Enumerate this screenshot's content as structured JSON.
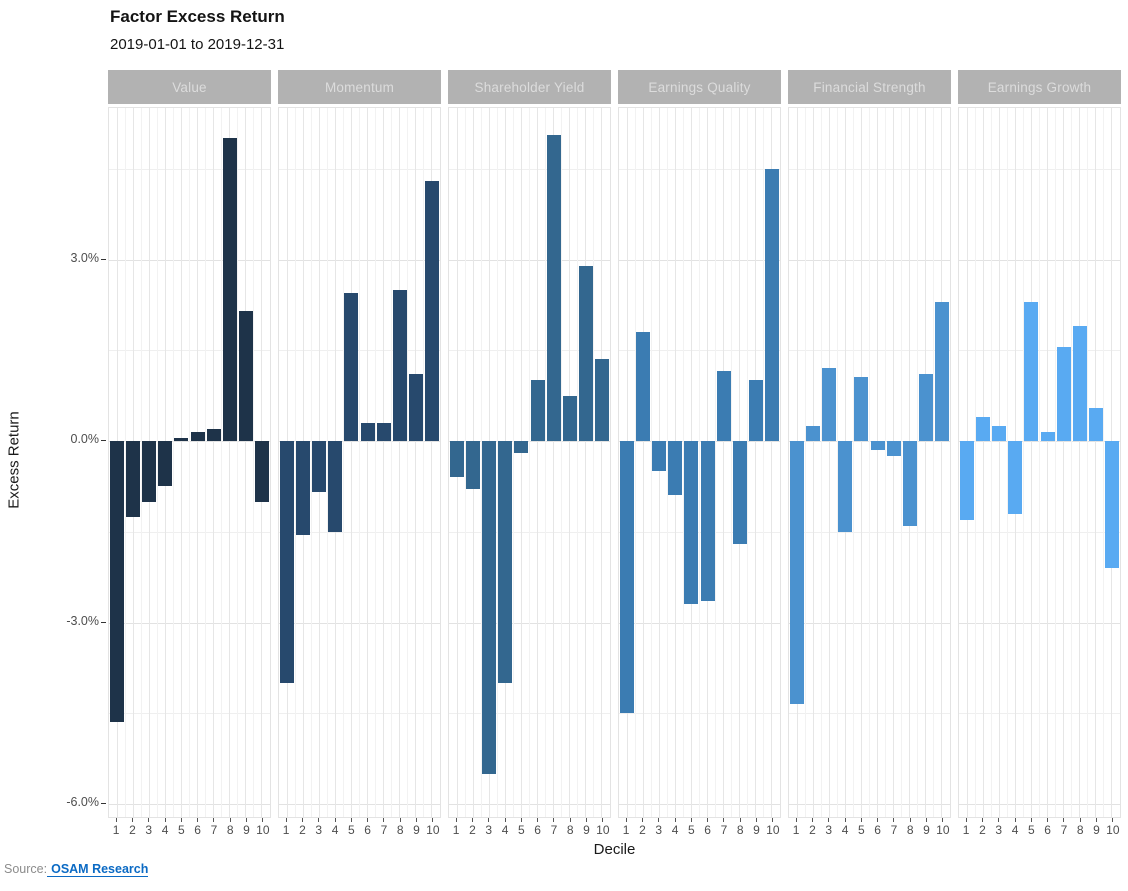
{
  "source": {
    "prefix": "Source:",
    "link_text": "OSAM Research"
  },
  "chart_data": {
    "type": "bar",
    "title": "Factor Excess Return",
    "subtitle": "2019-01-01 to 2019-12-31",
    "xlabel": "Decile",
    "ylabel": "Excess Return",
    "categories": [
      "1",
      "2",
      "3",
      "4",
      "5",
      "6",
      "7",
      "8",
      "9",
      "10"
    ],
    "ylim": [
      -6.2,
      5.5
    ],
    "y_ticks": [
      {
        "label": "3.0%",
        "value": 3
      },
      {
        "label": "0.0%",
        "value": 0
      },
      {
        "label": "-3.0%",
        "value": -3
      },
      {
        "label": "-6.0%",
        "value": -6
      }
    ],
    "gridlines": {
      "major_y": [
        3,
        0,
        -3,
        -6
      ],
      "minor_y": [
        4.5,
        1.5,
        -1.5,
        -4.5
      ]
    },
    "legend": "none",
    "facets": [
      {
        "label": "Value",
        "color": "#1e3349",
        "values": [
          -4.65,
          -1.25,
          -1.0,
          -0.75,
          0.05,
          0.15,
          0.2,
          5.0,
          2.15,
          -1.0
        ]
      },
      {
        "label": "Momentum",
        "color": "#27496d",
        "values": [
          -4.0,
          -1.55,
          -0.85,
          -1.5,
          2.45,
          0.3,
          0.3,
          2.5,
          1.1,
          4.3
        ]
      },
      {
        "label": "Shareholder Yield",
        "color": "#33678f",
        "values": [
          -0.6,
          -0.8,
          -5.5,
          -4.0,
          -0.2,
          1.0,
          5.05,
          0.75,
          2.9,
          1.35
        ]
      },
      {
        "label": "Earnings Quality",
        "color": "#3b7cb2",
        "values": [
          -4.5,
          1.8,
          -0.5,
          -0.9,
          -2.7,
          -2.65,
          1.15,
          -1.7,
          1.0,
          4.5
        ]
      },
      {
        "label": "Financial Strength",
        "color": "#4b92cf",
        "values": [
          -4.35,
          0.25,
          1.2,
          -1.5,
          1.05,
          -0.15,
          -0.25,
          -1.4,
          1.1,
          2.3
        ]
      },
      {
        "label": "Earnings Growth",
        "color": "#59aaf2",
        "values": [
          -1.3,
          0.4,
          0.25,
          -1.2,
          2.3,
          0.15,
          1.55,
          1.9,
          0.55,
          -2.1
        ]
      }
    ]
  }
}
